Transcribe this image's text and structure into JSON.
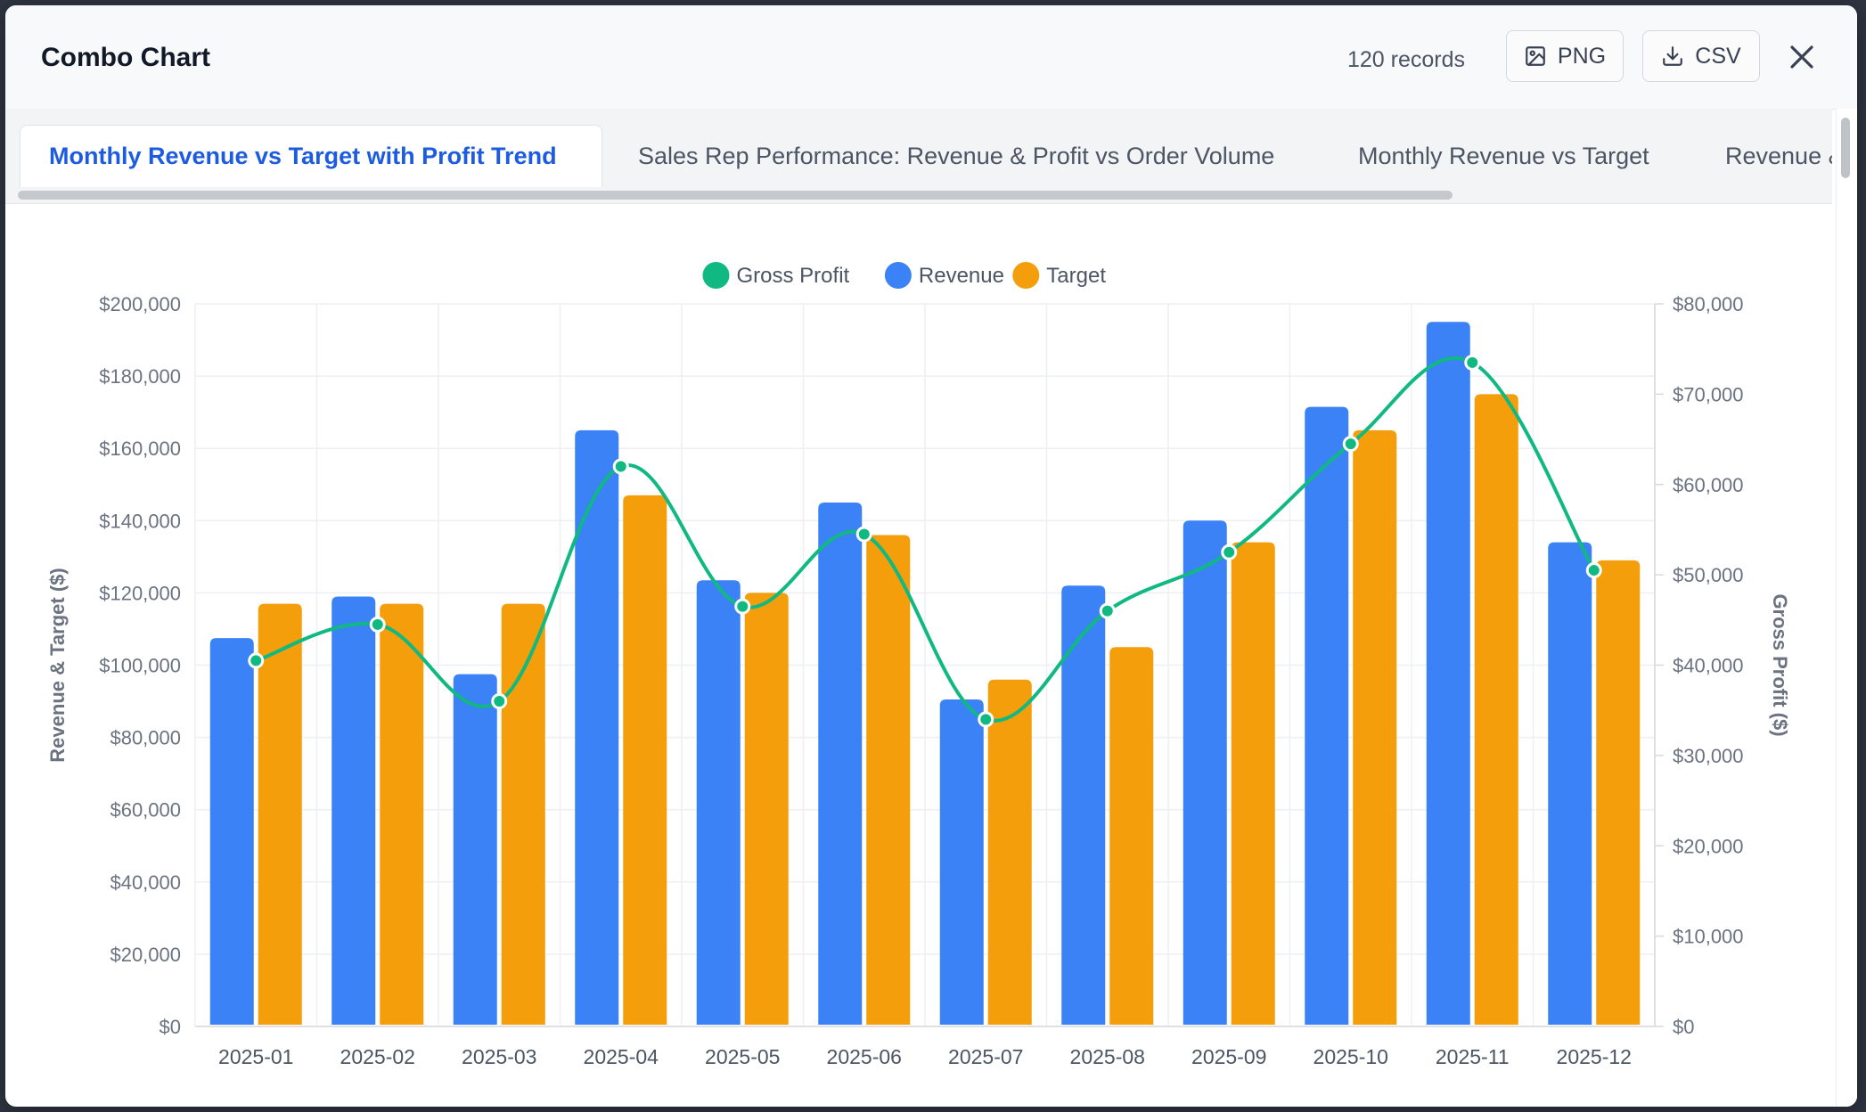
{
  "header": {
    "title": "Combo Chart",
    "records": "120 records",
    "png_label": "PNG",
    "csv_label": "CSV"
  },
  "tabs": [
    {
      "label": "Monthly Revenue vs Target with Profit Trend",
      "active": true
    },
    {
      "label": "Sales Rep Performance: Revenue & Profit vs Order Volume",
      "active": false
    },
    {
      "label": "Monthly Revenue vs Target",
      "active": false
    },
    {
      "label": "Revenue &",
      "active": false
    }
  ],
  "icons": {
    "png": "image-icon",
    "csv": "download-icon",
    "close": "close-icon"
  },
  "chart_data": {
    "type": "bar",
    "categories": [
      "2025-01",
      "2025-02",
      "2025-03",
      "2025-04",
      "2025-05",
      "2025-06",
      "2025-07",
      "2025-08",
      "2025-09",
      "2025-10",
      "2025-11",
      "2025-12"
    ],
    "series": [
      {
        "name": "Revenue",
        "type": "bar",
        "axis": "left",
        "color": "#3b82f6",
        "values": [
          107500,
          119000,
          97500,
          165000,
          123500,
          145000,
          90500,
          122000,
          140000,
          171500,
          195000,
          134000
        ]
      },
      {
        "name": "Target",
        "type": "bar",
        "axis": "left",
        "color": "#f59e0b",
        "values": [
          117000,
          117000,
          117000,
          147000,
          120000,
          136000,
          96000,
          105000,
          134000,
          165000,
          175000,
          129000
        ]
      },
      {
        "name": "Gross Profit",
        "type": "line",
        "axis": "right",
        "color": "#10b981",
        "values": [
          40500,
          44500,
          36000,
          62000,
          46500,
          54500,
          34000,
          46000,
          52500,
          64500,
          73500,
          50500
        ]
      }
    ],
    "ylabel": "Revenue & Target ($)",
    "y2label": "Gross Profit ($)",
    "ylim": [
      0,
      200000
    ],
    "y2lim": [
      0,
      80000
    ],
    "yticks": [
      "$0",
      "$20,000",
      "$40,000",
      "$60,000",
      "$80,000",
      "$100,000",
      "$120,000",
      "$140,000",
      "$160,000",
      "$180,000",
      "$200,000"
    ],
    "y2ticks": [
      "$0",
      "$10,000",
      "$20,000",
      "$30,000",
      "$40,000",
      "$50,000",
      "$60,000",
      "$70,000",
      "$80,000"
    ],
    "legend": [
      "Gross Profit",
      "Revenue",
      "Target"
    ],
    "legend_position": "top-center",
    "grid": true
  }
}
